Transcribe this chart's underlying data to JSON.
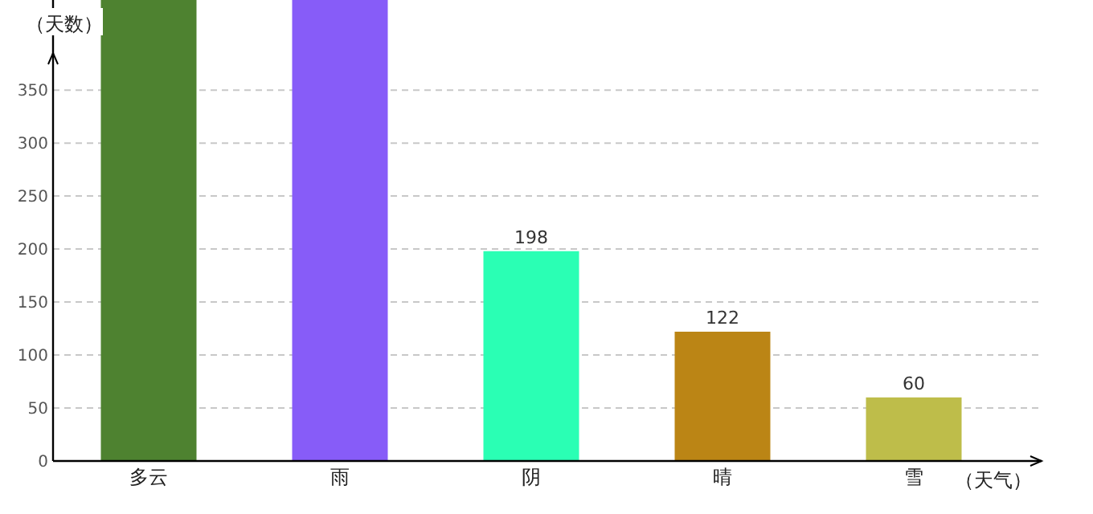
{
  "chart_data": {
    "type": "bar",
    "ylabel": "（天数）",
    "xlabel": "（天气）",
    "categories": [
      "多云",
      "雨",
      "阴",
      "晴",
      "雪"
    ],
    "values": [
      435,
      435,
      198,
      122,
      60
    ],
    "colors": [
      "#4e8230",
      "#875cf8",
      "#2affb4",
      "#bb8515",
      "#bebd4a"
    ],
    "value_labels": [
      null,
      null,
      "198",
      "122",
      "60"
    ],
    "ylim": [
      0,
      435
    ],
    "yticks": [
      0,
      50,
      100,
      150,
      200,
      250,
      300,
      350
    ],
    "grid": "y"
  }
}
